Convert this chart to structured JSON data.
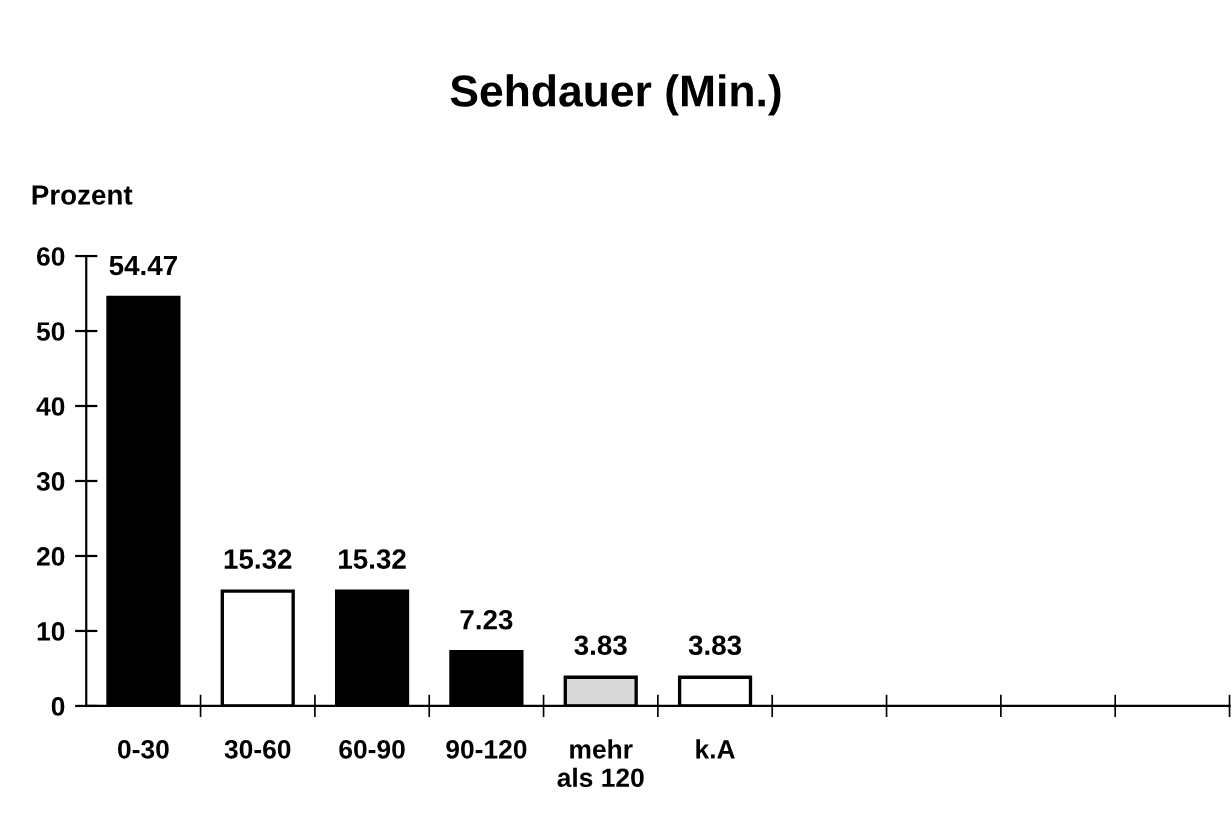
{
  "chart_data": {
    "type": "bar",
    "title": "Sehdauer (Min.)",
    "ylabel": "Prozent",
    "categories": [
      "0-30",
      "30-60",
      "60-90",
      "90-120",
      "mehr\nals 120",
      "k.A",
      null,
      null,
      null,
      null
    ],
    "values": [
      54.47,
      15.32,
      15.32,
      7.23,
      3.83,
      3.83,
      null,
      null,
      null,
      null
    ],
    "colors": [
      "#000000",
      "#ffffff",
      "#000000",
      "#000000",
      "#d9d9d9",
      "#ffffff",
      null,
      null,
      null,
      null
    ],
    "data_labels": true,
    "ylim": [
      0,
      60
    ],
    "yticks": [
      0,
      10,
      20,
      30,
      40,
      50,
      60
    ],
    "grid": false,
    "legend": false
  }
}
